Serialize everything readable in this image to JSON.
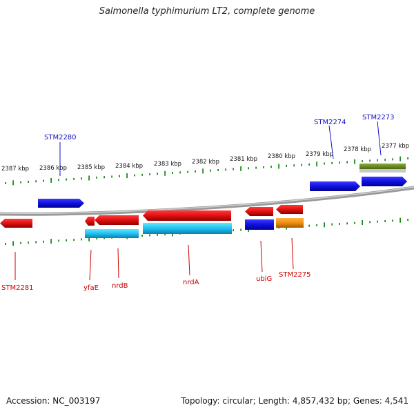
{
  "title": "Salmonella typhimurium LT2, complete genome",
  "footer": {
    "accession": "Accession: NC_003197",
    "summary": "Topology: circular; Length: 4,857,432 bp; Genes: 4,541"
  },
  "kbp_labels": [
    "2387 kbp",
    "2386 kbp",
    "2385 kbp",
    "2384 kbp",
    "2383 kbp",
    "2382 kbp",
    "2381 kbp",
    "2380 kbp",
    "2379 kbp",
    "2378 kbp",
    "2377 kbp"
  ],
  "gene_labels_top": [
    "STM2280",
    "STM2274",
    "STM2273"
  ],
  "gene_labels_bottom": [
    "STM2281",
    "yfaE",
    "nrdB",
    "nrdA",
    "ubiG",
    "STM2275"
  ],
  "colors": {
    "cds_forward": "#2020e0",
    "cds_reverse": "#e01010",
    "rna_cyan": "#20c8f0",
    "orange": "#f09010",
    "green": "#6a8a20",
    "backbone": "#888888",
    "tick": "#1a8a1a",
    "label_blue": "#1010c0",
    "label_red": "#cc0000"
  }
}
